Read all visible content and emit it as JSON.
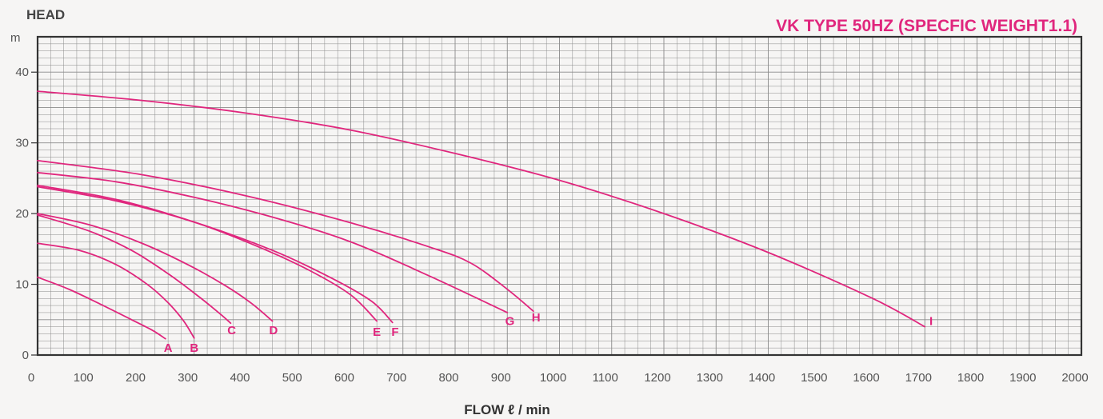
{
  "chart_data": {
    "type": "line",
    "title": "VK TYPE 50HZ (SPECFIC WEIGHT1.1)",
    "ylabel": "HEAD",
    "yunit": "m",
    "xlabel": "FLOW ℓ / min",
    "xlim": [
      0,
      2000
    ],
    "ylim": [
      0,
      45
    ],
    "xticks": [
      "0",
      "100",
      "200",
      "300",
      "400",
      "500",
      "600",
      "700",
      "800",
      "900",
      "1000",
      "1100",
      "1200",
      "1300",
      "1400",
      "1500",
      "1600",
      "1700",
      "1800",
      "1900",
      "2000"
    ],
    "yticks": [
      "0",
      "10",
      "20",
      "30",
      "40"
    ],
    "grid": true,
    "colors": {
      "curve": "#e0267d",
      "grid": "#8a8a8a",
      "frame": "#333333",
      "title": "#e0267d"
    },
    "series": [
      {
        "name": "A",
        "x": [
          0,
          60,
          120,
          180,
          220,
          245
        ],
        "y": [
          11,
          9.3,
          7.2,
          5.0,
          3.5,
          2.3
        ]
      },
      {
        "name": "B",
        "x": [
          0,
          80,
          150,
          210,
          250,
          280,
          300
        ],
        "y": [
          15.8,
          14.8,
          12.8,
          10.0,
          7.4,
          4.8,
          2.4
        ]
      },
      {
        "name": "C",
        "x": [
          0,
          100,
          180,
          250,
          310,
          350,
          370
        ],
        "y": [
          19.8,
          17.5,
          14.8,
          11.5,
          8.2,
          5.8,
          4.5
        ]
      },
      {
        "name": "D",
        "x": [
          0,
          100,
          200,
          290,
          360,
          410,
          450
        ],
        "y": [
          20.0,
          18.4,
          15.8,
          12.7,
          9.8,
          7.3,
          4.8
        ]
      },
      {
        "name": "E",
        "x": [
          0,
          150,
          300,
          420,
          520,
          600,
          650
        ],
        "y": [
          24.0,
          22.0,
          18.8,
          15.4,
          12.0,
          8.5,
          4.8
        ]
      },
      {
        "name": "F",
        "x": [
          0,
          150,
          300,
          450,
          560,
          640,
          680
        ],
        "y": [
          23.8,
          21.8,
          18.8,
          14.8,
          11.0,
          7.6,
          4.6
        ]
      },
      {
        "name": "G",
        "x": [
          0,
          150,
          300,
          450,
          600,
          750,
          900
        ],
        "y": [
          25.8,
          24.5,
          22.3,
          19.5,
          16.0,
          11.2,
          6.0
        ]
      },
      {
        "name": "H",
        "x": [
          0,
          200,
          400,
          600,
          750,
          830,
          900,
          950
        ],
        "y": [
          27.5,
          25.5,
          22.5,
          18.7,
          15.3,
          13.0,
          9.3,
          6.2
        ]
      },
      {
        "name": "I",
        "x": [
          0,
          200,
          400,
          600,
          800,
          1000,
          1200,
          1400,
          1600,
          1700
        ],
        "y": [
          37.3,
          36.0,
          34.2,
          31.8,
          28.5,
          24.7,
          20.0,
          14.5,
          8.0,
          4.0
        ]
      }
    ],
    "curve_labels": [
      {
        "text": "A",
        "x": 250,
        "y": 1.0
      },
      {
        "text": "B",
        "x": 300,
        "y": 1.0
      },
      {
        "text": "C",
        "x": 372,
        "y": 3.5
      },
      {
        "text": "D",
        "x": 452,
        "y": 3.5
      },
      {
        "text": "E",
        "x": 650,
        "y": 3.3
      },
      {
        "text": "F",
        "x": 685,
        "y": 3.3
      },
      {
        "text": "G",
        "x": 905,
        "y": 4.8
      },
      {
        "text": "H",
        "x": 955,
        "y": 5.3
      },
      {
        "text": "I",
        "x": 1712,
        "y": 4.8
      }
    ]
  }
}
